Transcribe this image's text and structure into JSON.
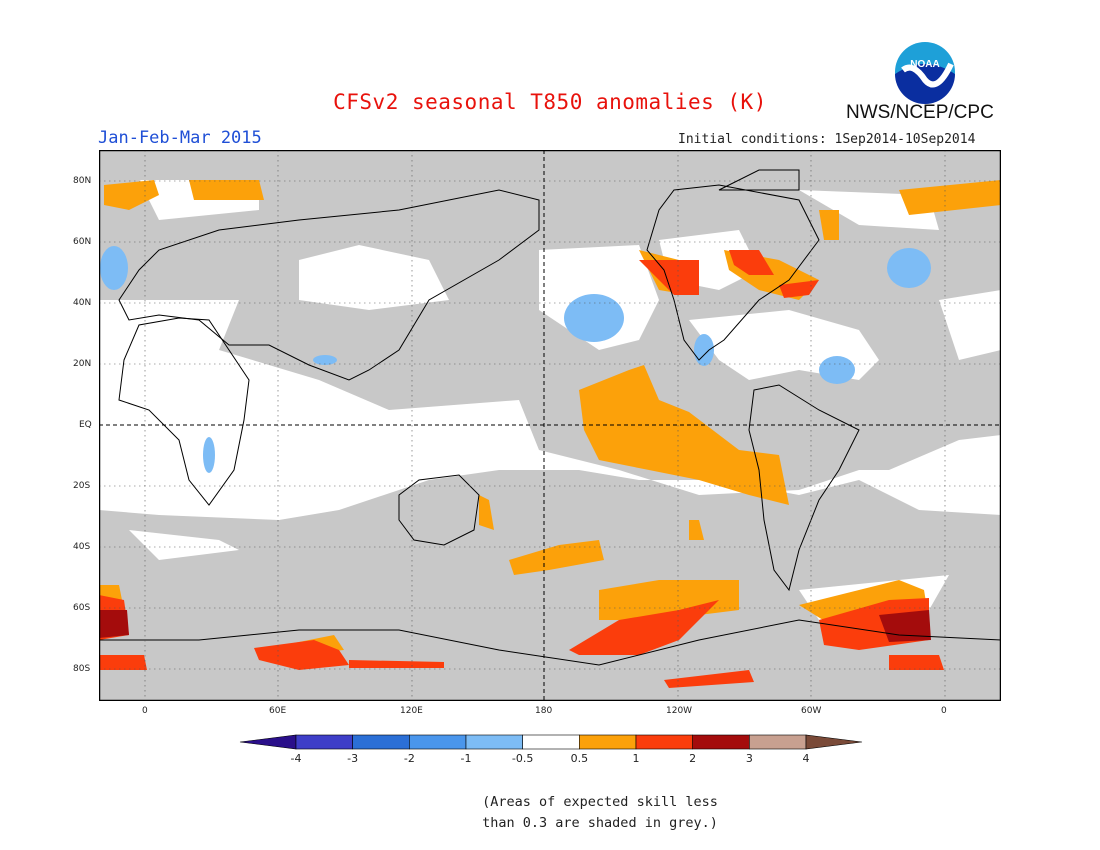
{
  "header": {
    "title": "CFSv2 seasonal T850 anomalies (K)",
    "season": "Jan-Feb-Mar 2015",
    "initial_conditions": "Initial conditions: 1Sep2014-10Sep2014",
    "organization": "NWS/NCEP/CPC",
    "logo_text": "NOAA"
  },
  "map": {
    "lat_labels": [
      "80N",
      "60N",
      "40N",
      "20N",
      "EQ",
      "20S",
      "40S",
      "60S",
      "80S"
    ],
    "lon_labels": [
      "0",
      "60E",
      "120E",
      "180",
      "120W",
      "60W",
      "0"
    ],
    "colors": {
      "grey": "#c8c8c8",
      "land": "#000000"
    }
  },
  "legend": {
    "labels": [
      "-4",
      "-3",
      "-2",
      "-1",
      "-0.5",
      "0.5",
      "1",
      "2",
      "3",
      "4"
    ],
    "colors": [
      "#2a0f8a",
      "#3e3ec8",
      "#2b6fd6",
      "#4a96ec",
      "#7dbcf5",
      "#ffffff",
      "#fca10a",
      "#fb3d0c",
      "#a40c0c",
      "#c8a090",
      "#7a4a38"
    ]
  },
  "note": {
    "line1": "(Areas of expected skill less",
    "line2": "than 0.3 are shaded in grey.)"
  }
}
